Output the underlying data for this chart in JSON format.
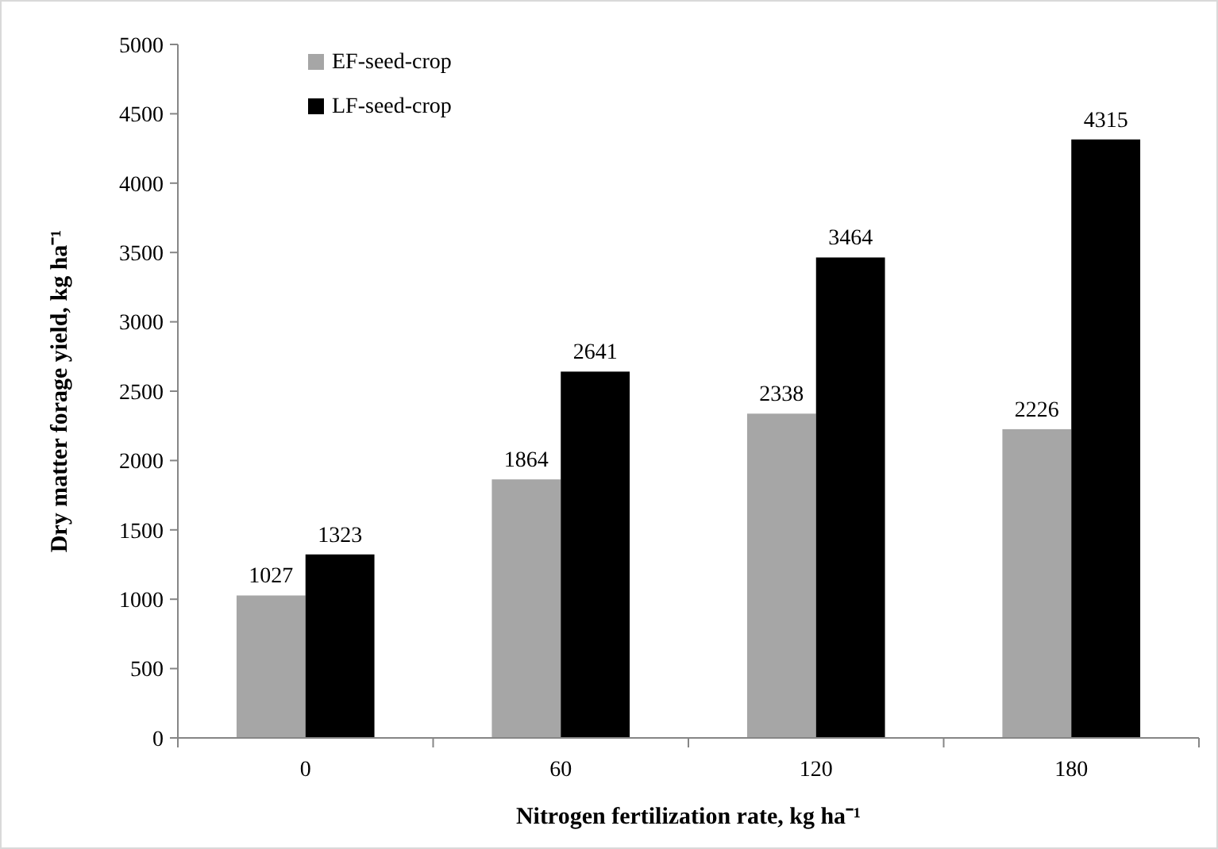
{
  "chart_data": {
    "type": "bar",
    "xlabel": "Nitrogen fertilization rate, kg ha⁻¹",
    "ylabel": "Dry matter forage yield, kg ha⁻¹",
    "categories": [
      "0",
      "60",
      "120",
      "180"
    ],
    "series": [
      {
        "name": "EF-seed-crop",
        "color": "#a6a6a6",
        "values": [
          1027,
          1864,
          2338,
          2226
        ]
      },
      {
        "name": "LF-seed-crop",
        "color": "#000000",
        "values": [
          1323,
          2641,
          3464,
          4315
        ]
      }
    ],
    "ylim": [
      0,
      5000
    ],
    "yticks": [
      0,
      500,
      1000,
      1500,
      2000,
      2500,
      3000,
      3500,
      4000,
      4500,
      5000
    ],
    "grid": false,
    "legend": "top left",
    "data_labels": true
  }
}
